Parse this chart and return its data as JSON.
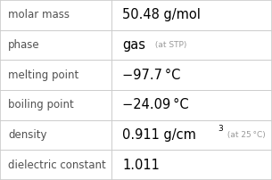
{
  "rows": [
    {
      "label": "molar mass",
      "value": "50.48 g/mol",
      "annotation": "",
      "superscript": ""
    },
    {
      "label": "phase",
      "value": "gas",
      "annotation": " (at STP)",
      "superscript": ""
    },
    {
      "label": "melting point",
      "value": "−97.7 °C",
      "annotation": "",
      "superscript": ""
    },
    {
      "label": "boiling point",
      "value": "−24.09 °C",
      "annotation": "",
      "superscript": ""
    },
    {
      "label": "density",
      "value": "0.911 g/cm",
      "annotation": " (at 25 °C)",
      "superscript": "3"
    },
    {
      "label": "dielectric constant",
      "value": "1.011",
      "annotation": "",
      "superscript": ""
    }
  ],
  "col_split": 0.41,
  "bg_color": "#ffffff",
  "label_color": "#505050",
  "value_color": "#000000",
  "annotation_color": "#999999",
  "line_color": "#cccccc",
  "label_fontsize": 8.5,
  "value_fontsize": 10.5,
  "annotation_fontsize": 6.5,
  "superscript_fontsize": 6.5
}
